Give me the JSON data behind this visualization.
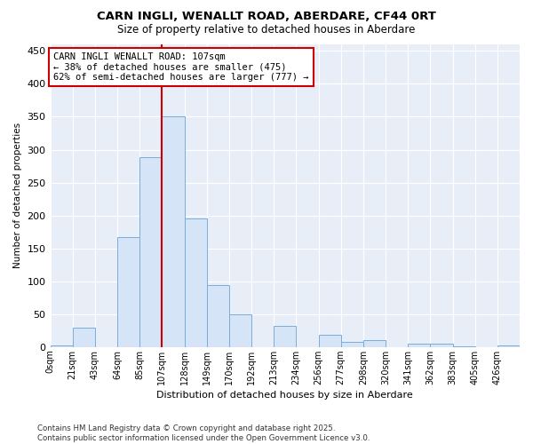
{
  "title": "CARN INGLI, WENALLT ROAD, ABERDARE, CF44 0RT",
  "subtitle": "Size of property relative to detached houses in Aberdare",
  "xlabel": "Distribution of detached houses by size in Aberdare",
  "ylabel": "Number of detached properties",
  "bin_labels": [
    "0sqm",
    "21sqm",
    "43sqm",
    "64sqm",
    "85sqm",
    "107sqm",
    "128sqm",
    "149sqm",
    "170sqm",
    "192sqm",
    "213sqm",
    "234sqm",
    "256sqm",
    "277sqm",
    "298sqm",
    "320sqm",
    "341sqm",
    "362sqm",
    "383sqm",
    "405sqm",
    "426sqm"
  ],
  "bar_heights": [
    2,
    30,
    0,
    167,
    288,
    350,
    196,
    94,
    50,
    0,
    32,
    0,
    18,
    8,
    10,
    0,
    5,
    5,
    1,
    0,
    3
  ],
  "bar_color": "#d6e4f7",
  "bar_edge_color": "#7aaddb",
  "vline_x_index": 5,
  "vline_color": "#cc0000",
  "annotation_text": "CARN INGLI WENALLT ROAD: 107sqm\n← 38% of detached houses are smaller (475)\n62% of semi-detached houses are larger (777) →",
  "annotation_box_color": "#ffffff",
  "annotation_box_edge": "#cc0000",
  "figure_background": "#ffffff",
  "plot_background": "#e8eef8",
  "grid_color": "#ffffff",
  "footer_text": "Contains HM Land Registry data © Crown copyright and database right 2025.\nContains public sector information licensed under the Open Government Licence v3.0.",
  "ylim": [
    0,
    460
  ],
  "yticks": [
    0,
    50,
    100,
    150,
    200,
    250,
    300,
    350,
    400,
    450
  ]
}
